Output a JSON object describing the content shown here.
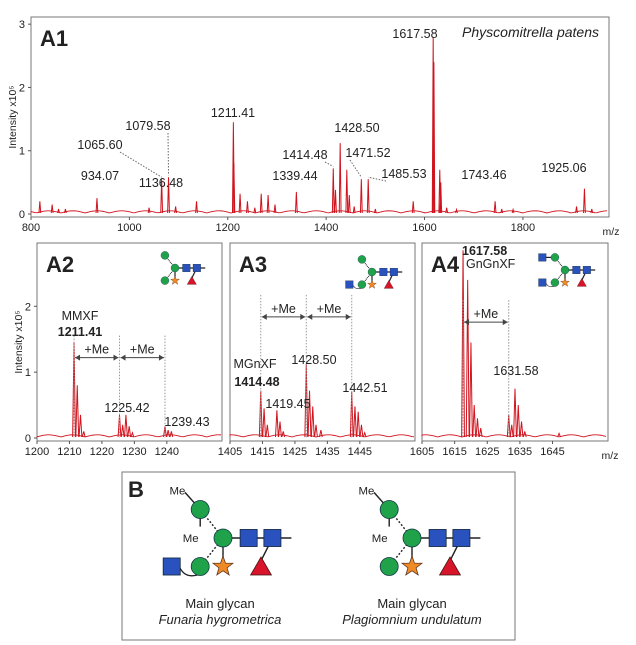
{
  "chart_data": [
    {
      "type": "line",
      "panel_label": "A1",
      "title": "Physcomitrella patens",
      "xlabel": "m/z",
      "ylabel": "Intensity x10⁵",
      "xlim": [
        800,
        1975
      ],
      "ylim": [
        0,
        3.05
      ],
      "xticks": [
        800,
        1000,
        1200,
        1400,
        1600,
        1800
      ],
      "yticks": [
        0,
        1,
        2,
        3
      ],
      "color": "#d0141e",
      "peaks": [
        [
          818,
          0.2
        ],
        [
          843,
          0.15
        ],
        [
          856,
          0.08
        ],
        [
          870,
          0.08
        ],
        [
          934.07,
          0.25
        ],
        [
          1040,
          0.1
        ],
        [
          1065.6,
          0.55
        ],
        [
          1079.58,
          0.58
        ],
        [
          1094,
          0.12
        ],
        [
          1136.48,
          0.2
        ],
        [
          1211.41,
          1.45
        ],
        [
          1212.4,
          0.8
        ],
        [
          1225,
          0.32
        ],
        [
          1240,
          0.2
        ],
        [
          1255,
          0.1
        ],
        [
          1268,
          0.32
        ],
        [
          1282,
          0.3
        ],
        [
          1296,
          0.15
        ],
        [
          1339.44,
          0.35
        ],
        [
          1414.48,
          0.72
        ],
        [
          1419,
          0.38
        ],
        [
          1428.5,
          1.12
        ],
        [
          1442,
          0.7
        ],
        [
          1447,
          0.3
        ],
        [
          1457,
          0.12
        ],
        [
          1471.52,
          0.55
        ],
        [
          1485.53,
          0.55
        ],
        [
          1500,
          0.08
        ],
        [
          1577,
          0.2
        ],
        [
          1617.58,
          2.8
        ],
        [
          1619,
          2.4
        ],
        [
          1631,
          0.7
        ],
        [
          1633,
          0.5
        ],
        [
          1645,
          0.1
        ],
        [
          1665,
          0.07
        ],
        [
          1743.46,
          0.2
        ],
        [
          1757,
          0.08
        ],
        [
          1780,
          0.07
        ],
        [
          1909,
          0.12
        ],
        [
          1925.06,
          0.4
        ],
        [
          1940,
          0.08
        ]
      ],
      "labels": [
        "934.07",
        "1065.60",
        "1079.58",
        "1136.48",
        "1211.41",
        "1339.44",
        "1414.48",
        "1428.50",
        "1471.52",
        "1485.53",
        "1617.58",
        "1743.46",
        "1925.06"
      ]
    },
    {
      "type": "line",
      "panel_label": "A2",
      "xlabel": "",
      "ylabel": "Intensity x10⁵",
      "xlim": [
        1200,
        1257
      ],
      "ylim": [
        0,
        2.9
      ],
      "xticks": [
        1200,
        1210,
        1220,
        1230,
        1240
      ],
      "yticks": [
        0,
        1,
        2
      ],
      "color": "#d0141e",
      "peaks": [
        [
          1211.41,
          1.45
        ],
        [
          1212.4,
          0.8
        ],
        [
          1213.4,
          0.35
        ],
        [
          1214.4,
          0.1
        ],
        [
          1225.42,
          0.35
        ],
        [
          1226.4,
          0.2
        ],
        [
          1227.4,
          0.35
        ],
        [
          1228.4,
          0.18
        ],
        [
          1229.4,
          0.08
        ],
        [
          1239.43,
          0.18
        ],
        [
          1240.4,
          0.12
        ],
        [
          1241.4,
          0.1
        ]
      ],
      "glycan_name": "MMXF",
      "main_peak": "1211.41",
      "labels": [
        "1225.42",
        "1239.43"
      ],
      "methyl_label": "+Me"
    },
    {
      "type": "line",
      "panel_label": "A3",
      "xlabel": "",
      "xlim": [
        1405,
        1462
      ],
      "ylim": [
        0,
        2.9
      ],
      "xticks": [
        1405,
        1415,
        1425,
        1435,
        1445
      ],
      "color": "#d0141e",
      "peaks": [
        [
          1414.48,
          0.72
        ],
        [
          1415.5,
          0.45
        ],
        [
          1416.5,
          0.2
        ],
        [
          1419.45,
          0.42
        ],
        [
          1420.4,
          0.25
        ],
        [
          1421.4,
          0.1
        ],
        [
          1428.5,
          1.12
        ],
        [
          1429.5,
          0.72
        ],
        [
          1430.5,
          0.48
        ],
        [
          1431.5,
          0.2
        ],
        [
          1433,
          0.12
        ],
        [
          1442.51,
          0.7
        ],
        [
          1443.5,
          0.48
        ],
        [
          1444.5,
          0.4
        ],
        [
          1445.5,
          0.2
        ],
        [
          1446.5,
          0.08
        ]
      ],
      "glycan_name": "MGnXF",
      "main_peak": "1414.48",
      "labels": [
        "1428.50",
        "1419.45",
        "1442.51"
      ],
      "methyl_label": "+Me"
    },
    {
      "type": "line",
      "panel_label": "A4",
      "xlabel": "m/z",
      "xlim": [
        1605,
        1662
      ],
      "ylim": [
        0,
        2.9
      ],
      "xticks": [
        1605,
        1615,
        1625,
        1635,
        1645
      ],
      "color": "#d0141e",
      "peaks": [
        [
          1617.58,
          2.85
        ],
        [
          1619,
          2.4
        ],
        [
          1620,
          1.45
        ],
        [
          1621,
          0.5
        ],
        [
          1622,
          0.3
        ],
        [
          1623,
          0.15
        ],
        [
          1631.58,
          0.35
        ],
        [
          1632.5,
          0.2
        ],
        [
          1633.5,
          0.75
        ],
        [
          1634.5,
          0.5
        ],
        [
          1635.5,
          0.25
        ],
        [
          1636.5,
          0.1
        ],
        [
          1647,
          0.07
        ]
      ],
      "glycan_name": "GnGnXF",
      "main_peak": "1617.58",
      "labels": [
        "1631.58"
      ],
      "methyl_label": "+Me"
    }
  ],
  "panel_b": {
    "label": "B",
    "methyl": "Me",
    "glycans": [
      {
        "caption": "Main glycan",
        "species": "Funaria hygrometrica"
      },
      {
        "caption": "Main glycan",
        "species": "Plagiomnium undulatum"
      }
    ]
  },
  "colors": {
    "spectrum": "#d0141e",
    "mannose": "#1fa24a",
    "glcnac": "#2a52be",
    "xylose": "#f08a24",
    "fucose": "#d7142a"
  }
}
